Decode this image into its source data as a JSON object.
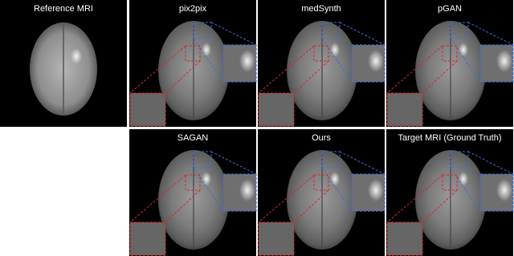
{
  "reference": {
    "label": "Reference MRI"
  },
  "panels": [
    {
      "label": "pix2pix"
    },
    {
      "label": "medSynth"
    },
    {
      "label": "pGAN"
    },
    {
      "label": "SAGAN"
    },
    {
      "label": "Ours"
    },
    {
      "label": "Target MRI (Ground Truth)"
    }
  ]
}
